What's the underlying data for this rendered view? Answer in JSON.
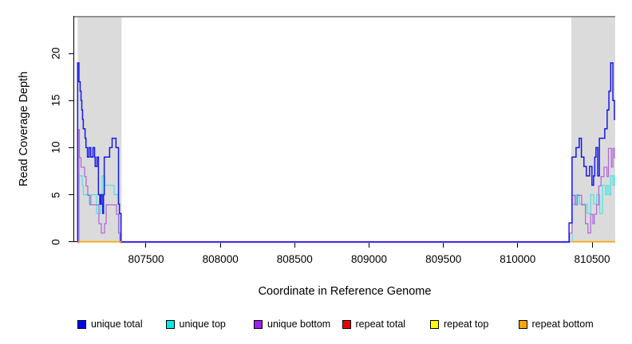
{
  "axes": {
    "x_label": "Coordinate in Reference Genome",
    "y_label": "Read Coverage Depth",
    "x_ticks": [
      807500,
      808000,
      808500,
      809000,
      809500,
      810000,
      810500
    ],
    "y_ticks": [
      0,
      5,
      10,
      15,
      20
    ]
  },
  "legend": {
    "items": [
      {
        "label": "unique total",
        "color": "#0000F5"
      },
      {
        "label": "unique top",
        "color": "#00E8F0"
      },
      {
        "label": "unique bottom",
        "color": "#A020F0"
      },
      {
        "label": "repeat total",
        "color": "#F00000"
      },
      {
        "label": "repeat top",
        "color": "#FFFF00"
      },
      {
        "label": "repeat bottom",
        "color": "#FFA500"
      }
    ]
  },
  "chart_data": {
    "type": "line",
    "subtype": "step-coverage",
    "title": "",
    "xlabel": "Coordinate in Reference Genome",
    "ylabel": "Read Coverage Depth",
    "xlim": [
      807015,
      810656
    ],
    "ylim": [
      0,
      24
    ],
    "x_tick_values": [
      807500,
      808000,
      808500,
      809000,
      809500,
      810000,
      810500
    ],
    "y_tick_values": [
      0,
      5,
      10,
      15,
      20
    ],
    "grid": false,
    "legend_position": "bottom",
    "shaded_regions": [
      [
        807040,
        807335
      ],
      [
        810360,
        810655
      ]
    ],
    "shaded_color": "#DBDBDB",
    "series": [
      {
        "name": "unique total",
        "color": "#1818E8",
        "width": 1.5,
        "dy": 0,
        "segments": [
          [
            [
              807039,
              0
            ],
            [
              807040,
              19
            ],
            [
              807049,
              17
            ],
            [
              807057,
              16
            ],
            [
              807063,
              15
            ],
            [
              807068,
              14
            ],
            [
              807073,
              13
            ],
            [
              807078,
              12
            ],
            [
              807090,
              11
            ],
            [
              807096,
              10
            ],
            [
              807106,
              9
            ],
            [
              807117,
              10
            ],
            [
              807128,
              9
            ],
            [
              807143,
              10
            ],
            [
              807154,
              9
            ],
            [
              807158,
              8
            ],
            [
              807170,
              9
            ],
            [
              807180,
              5
            ],
            [
              807189,
              4
            ],
            [
              807195,
              5
            ],
            [
              807205,
              4
            ],
            [
              807209,
              3
            ],
            [
              807214,
              5
            ],
            [
              807219,
              9
            ],
            [
              807255,
              10
            ],
            [
              807272,
              11
            ],
            [
              807298,
              10
            ],
            [
              807315,
              4
            ],
            [
              807321,
              3
            ],
            [
              807332,
              0
            ],
            [
              810345,
              2
            ],
            [
              810365,
              9
            ],
            [
              810392,
              10
            ],
            [
              810413,
              11
            ],
            [
              810428,
              9
            ],
            [
              810445,
              8
            ],
            [
              810461,
              7
            ],
            [
              810483,
              8
            ],
            [
              810499,
              6
            ],
            [
              810510,
              7
            ],
            [
              810518,
              9
            ],
            [
              810526,
              10
            ],
            [
              810538,
              7
            ],
            [
              810549,
              11
            ],
            [
              810585,
              12
            ],
            [
              810601,
              14
            ],
            [
              810613,
              16
            ],
            [
              810625,
              19
            ],
            [
              810640,
              15
            ],
            [
              810650,
              13
            ],
            [
              810655,
              13
            ]
          ]
        ]
      },
      {
        "name": "unique top",
        "color": "#45E2E2",
        "width": 1.2,
        "dy": 0,
        "segments": [
          [
            [
              807039,
              0
            ],
            [
              807049,
              7
            ],
            [
              807071,
              6
            ],
            [
              807078,
              5
            ],
            [
              807119,
              4
            ],
            [
              807132,
              5
            ],
            [
              807167,
              3
            ],
            [
              807196,
              4
            ],
            [
              807205,
              7
            ],
            [
              807221,
              6
            ],
            [
              807285,
              5
            ],
            [
              807312,
              4
            ],
            [
              807321,
              0
            ],
            [
              810365,
              4
            ],
            [
              810392,
              5
            ],
            [
              810413,
              4
            ],
            [
              810467,
              3
            ],
            [
              810490,
              5
            ],
            [
              810510,
              4
            ],
            [
              810530,
              5
            ],
            [
              810551,
              3
            ],
            [
              810570,
              6
            ],
            [
              810590,
              5
            ],
            [
              810601,
              6
            ],
            [
              810613,
              5
            ],
            [
              810625,
              7
            ],
            [
              810640,
              6
            ],
            [
              810650,
              7
            ],
            [
              810655,
              7
            ]
          ]
        ]
      },
      {
        "name": "unique bottom",
        "color": "#AC63DE",
        "width": 1.2,
        "dy": 0.9,
        "segments": [
          [
            [
              807039,
              0
            ],
            [
              807049,
              12
            ],
            [
              807052,
              9
            ],
            [
              807063,
              8
            ],
            [
              807087,
              7
            ],
            [
              807097,
              6
            ],
            [
              807108,
              5
            ],
            [
              807124,
              4
            ],
            [
              807183,
              2
            ],
            [
              807199,
              1
            ],
            [
              807221,
              2
            ],
            [
              807232,
              4
            ],
            [
              807301,
              3
            ],
            [
              807315,
              1
            ],
            [
              807326,
              0
            ],
            [
              810350,
              1
            ],
            [
              810365,
              5
            ],
            [
              810385,
              4
            ],
            [
              810400,
              5
            ],
            [
              810430,
              4
            ],
            [
              810455,
              2
            ],
            [
              810472,
              1
            ],
            [
              810490,
              3
            ],
            [
              810505,
              2
            ],
            [
              810515,
              3
            ],
            [
              810530,
              4
            ],
            [
              810545,
              6
            ],
            [
              810560,
              7
            ],
            [
              810580,
              8
            ],
            [
              810600,
              7
            ],
            [
              810610,
              10
            ],
            [
              810630,
              8
            ],
            [
              810640,
              10
            ],
            [
              810650,
              9
            ],
            [
              810655,
              9
            ]
          ]
        ]
      },
      {
        "name": "repeat total",
        "color": "#E00000",
        "width": 1.2,
        "dy": 0,
        "segments": [
          [
            [
              807040,
              0
            ],
            [
              807335,
              0
            ]
          ],
          [
            [
              810360,
              0
            ],
            [
              810655,
              0
            ]
          ]
        ]
      },
      {
        "name": "repeat top",
        "color": "#FFFF00",
        "width": 1.2,
        "dy": 0,
        "segments": [
          [
            [
              807040,
              0
            ],
            [
              807335,
              0
            ]
          ],
          [
            [
              810360,
              0
            ],
            [
              810655,
              0
            ]
          ]
        ]
      },
      {
        "name": "repeat bottom",
        "color": "#FFA500",
        "width": 1.6,
        "dy": 0,
        "segments": [
          [
            [
              807040,
              0
            ],
            [
              807335,
              0
            ]
          ],
          [
            [
              810360,
              0
            ],
            [
              810655,
              0
            ]
          ]
        ]
      }
    ]
  }
}
